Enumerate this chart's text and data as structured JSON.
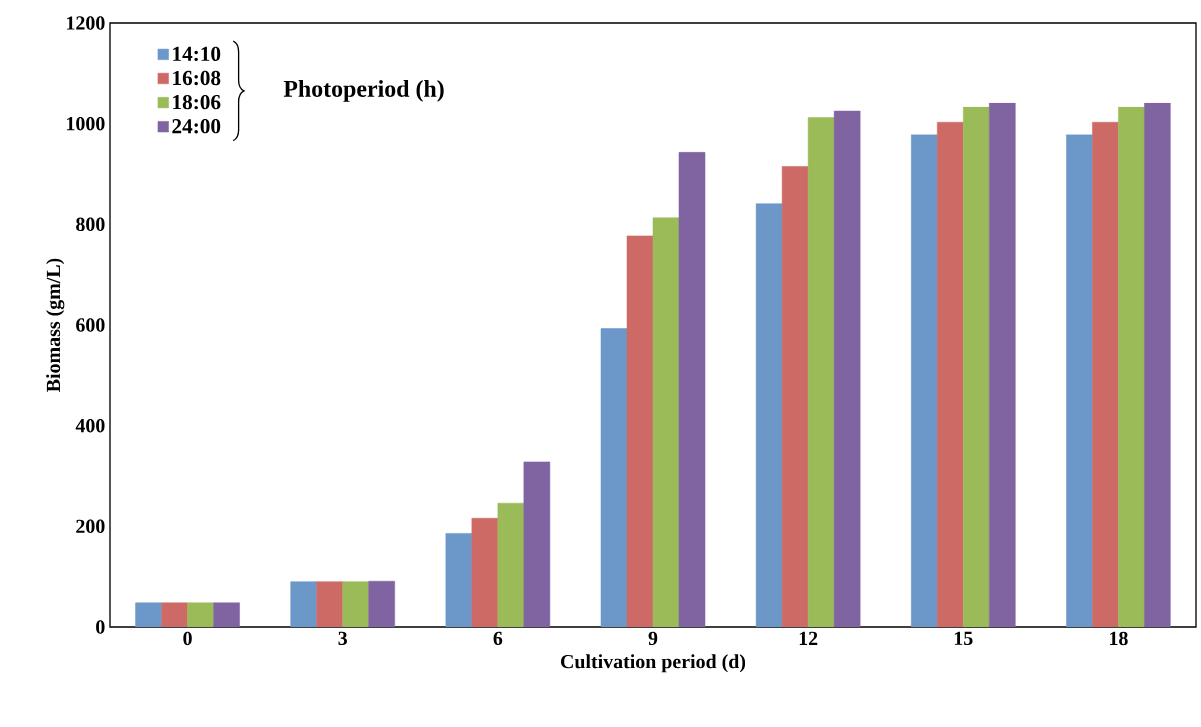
{
  "chart_data": {
    "type": "bar",
    "xlabel": "Cultivation period (d)",
    "ylabel": "Biomass (gm/L)",
    "legend_title": "Photoperiod (h)",
    "categories": [
      "0",
      "3",
      "6",
      "9",
      "12",
      "15",
      "18"
    ],
    "series": [
      {
        "name": "14:10",
        "color": "#6b97c9",
        "values": [
          48,
          90,
          186,
          593,
          841,
          978,
          978
        ]
      },
      {
        "name": "16:08",
        "color": "#cd6a66",
        "values": [
          48,
          90,
          216,
          777,
          915,
          1003,
          1003
        ]
      },
      {
        "name": "18:06",
        "color": "#9bbb59",
        "values": [
          48,
          90,
          246,
          813,
          1012,
          1033,
          1033
        ]
      },
      {
        "name": "24:00",
        "color": "#8064a2",
        "values": [
          48,
          91,
          328,
          943,
          1025,
          1041,
          1041
        ]
      }
    ],
    "ylim": [
      0,
      1200
    ],
    "yticks": [
      0,
      200,
      400,
      600,
      800,
      1000,
      1200
    ],
    "grid": false,
    "legend": "top left"
  }
}
